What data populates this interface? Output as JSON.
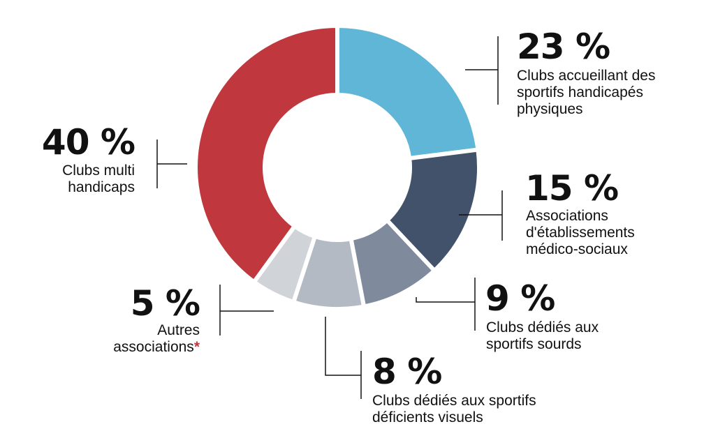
{
  "chart_data": {
    "type": "pie",
    "variant": "donut",
    "categories": [
      "Clubs accueillant des sportifs handicapés physiques",
      "Associations d'établissements médico-sociaux",
      "Clubs dédiés aux sportifs sourds",
      "Clubs dédiés aux sportifs déficients visuels",
      "Autres associations*",
      "Clubs multi handicaps"
    ],
    "values": [
      23,
      15,
      9,
      8,
      5,
      40
    ],
    "colors": [
      "#5fb6d6",
      "#42526a",
      "#7f8a9c",
      "#b4bac4",
      "#d0d3d8",
      "#c1373e"
    ],
    "labels": {
      "seg0": {
        "pct": "23 %",
        "text": "Clubs accueillant des\nsportifs handicapés\nphysiques"
      },
      "seg1": {
        "pct": "15 %",
        "text": "Associations\nd'établissements\nmédico-sociaux"
      },
      "seg2": {
        "pct": "9 %",
        "text": "Clubs dédiés aux\nsportifs sourds"
      },
      "seg3": {
        "pct": "8 %",
        "text": "Clubs dédiés aux sportifs\ndéficients visuels"
      },
      "seg4": {
        "pct": "5 %",
        "text": "Autres\nassociations",
        "mark": "*"
      },
      "seg5": {
        "pct": "40 %",
        "text": "Clubs multi\nhandicaps"
      }
    }
  }
}
